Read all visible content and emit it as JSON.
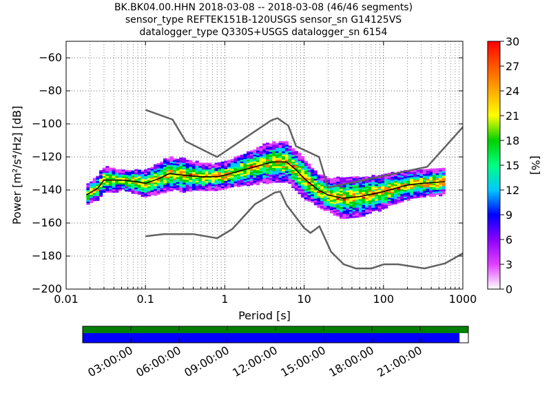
{
  "title": {
    "line1": "BK.BK04.00.HHN   2018-03-08 -- 2018-03-08  (46/46 segments)",
    "line2": "sensor_type REFTEK151B-120USGS sensor_sn G14125VS",
    "line3": "datalogger_type Q330S+USGS datalogger_sn 6154"
  },
  "chart_data": {
    "type": "heatmap",
    "xlabel": "Period [s]",
    "ylabel": "Power [m²/s⁴/Hz] [dB]",
    "xscale": "log",
    "xlim": [
      0.01,
      1000
    ],
    "ylim": [
      -200,
      -50
    ],
    "xticks": [
      {
        "value": 0.01,
        "label": "0.01"
      },
      {
        "value": 0.1,
        "label": "0.1"
      },
      {
        "value": 1,
        "label": "1"
      },
      {
        "value": 10,
        "label": "10"
      },
      {
        "value": 100,
        "label": "100"
      },
      {
        "value": 1000,
        "label": "1000"
      }
    ],
    "yticks": [
      {
        "value": -60,
        "label": "−60"
      },
      {
        "value": -80,
        "label": "−80"
      },
      {
        "value": -100,
        "label": "−100"
      },
      {
        "value": -120,
        "label": "−120"
      },
      {
        "value": -140,
        "label": "−140"
      },
      {
        "value": -160,
        "label": "−160"
      },
      {
        "value": -180,
        "label": "−180"
      },
      {
        "value": -200,
        "label": "−200"
      }
    ],
    "grid": "dotted",
    "colorbar": {
      "label": "[%]",
      "range": [
        0,
        30
      ],
      "ticks": [
        {
          "value": 0,
          "label": "0"
        },
        {
          "value": 3,
          "label": "3"
        },
        {
          "value": 6,
          "label": "6"
        },
        {
          "value": 9,
          "label": "9"
        },
        {
          "value": 12,
          "label": "12"
        },
        {
          "value": 15,
          "label": "15"
        },
        {
          "value": 18,
          "label": "18"
        },
        {
          "value": 21,
          "label": "21"
        },
        {
          "value": 24,
          "label": "24"
        },
        {
          "value": 27,
          "label": "27"
        },
        {
          "value": 30,
          "label": "30"
        }
      ],
      "colors": [
        "#ffffff",
        "#e040ff",
        "#8a00ff",
        "#0000ff",
        "#00c8ff",
        "#00ff80",
        "#00d000",
        "#ffff00",
        "#ff8000",
        "#ff0000"
      ]
    },
    "density_mean": [
      [
        0.018,
        -143
      ],
      [
        0.025,
        -139
      ],
      [
        0.03,
        -134
      ],
      [
        0.05,
        -134
      ],
      [
        0.08,
        -135
      ],
      [
        0.1,
        -136
      ],
      [
        0.15,
        -133
      ],
      [
        0.2,
        -130
      ],
      [
        0.3,
        -131
      ],
      [
        0.5,
        -132
      ],
      [
        0.8,
        -132
      ],
      [
        1,
        -131
      ],
      [
        2,
        -127
      ],
      [
        4,
        -123
      ],
      [
        6,
        -123
      ],
      [
        8,
        -128
      ],
      [
        10,
        -133
      ],
      [
        15,
        -140
      ],
      [
        20,
        -143
      ],
      [
        30,
        -145
      ],
      [
        50,
        -144
      ],
      [
        100,
        -141
      ],
      [
        200,
        -137
      ],
      [
        300,
        -136
      ],
      [
        600,
        -135
      ]
    ],
    "density_spread": [
      [
        0.018,
        3
      ],
      [
        0.03,
        4
      ],
      [
        0.05,
        3
      ],
      [
        0.1,
        4
      ],
      [
        0.2,
        5
      ],
      [
        0.3,
        5
      ],
      [
        0.5,
        4
      ],
      [
        1,
        4
      ],
      [
        2,
        5
      ],
      [
        4,
        6
      ],
      [
        6,
        6
      ],
      [
        8,
        6
      ],
      [
        10,
        6
      ],
      [
        15,
        5
      ],
      [
        20,
        5
      ],
      [
        30,
        6
      ],
      [
        50,
        6
      ],
      [
        100,
        5
      ],
      [
        300,
        4
      ],
      [
        600,
        4
      ]
    ],
    "series": [
      {
        "values": [
          [
            0.1,
            -91.5
          ],
          [
            0.22,
            -97.4
          ],
          [
            0.32,
            -110.5
          ],
          [
            0.8,
            -120
          ],
          [
            3.8,
            -98
          ],
          [
            4.6,
            -96.5
          ],
          [
            6.3,
            -101
          ],
          [
            7.9,
            -113.5
          ],
          [
            15.4,
            -120
          ],
          [
            20,
            -138.5
          ],
          [
            354.8,
            -126
          ],
          [
            10000,
            -48.5
          ]
        ]
      },
      {
        "values": [
          [
            0.1,
            -168
          ],
          [
            0.17,
            -166.7
          ],
          [
            0.4,
            -166.7
          ],
          [
            0.8,
            -169.2
          ],
          [
            1.24,
            -163.7
          ],
          [
            2.4,
            -148.6
          ],
          [
            4.3,
            -141.5
          ],
          [
            5,
            -141
          ],
          [
            6,
            -149
          ],
          [
            10,
            -163
          ],
          [
            12,
            -166
          ],
          [
            15.6,
            -162
          ],
          [
            21.9,
            -177.5
          ],
          [
            31.6,
            -185
          ],
          [
            45,
            -187.5
          ],
          [
            70,
            -187.5
          ],
          [
            101,
            -185
          ],
          [
            154,
            -185
          ],
          [
            328,
            -187.5
          ],
          [
            600,
            -184.4
          ],
          [
            10000,
            -151
          ]
        ]
      }
    ],
    "line_color": "#606060",
    "availability_axis": {
      "ticks": [
        "03:00:00",
        "06:00:00",
        "09:00:00",
        "12:00:00",
        "15:00:00",
        "18:00:00",
        "21:00:00"
      ],
      "coverage_fraction": 0.977,
      "bar_colors": {
        "top": "#008000",
        "bottom": "#0000ff"
      }
    }
  }
}
